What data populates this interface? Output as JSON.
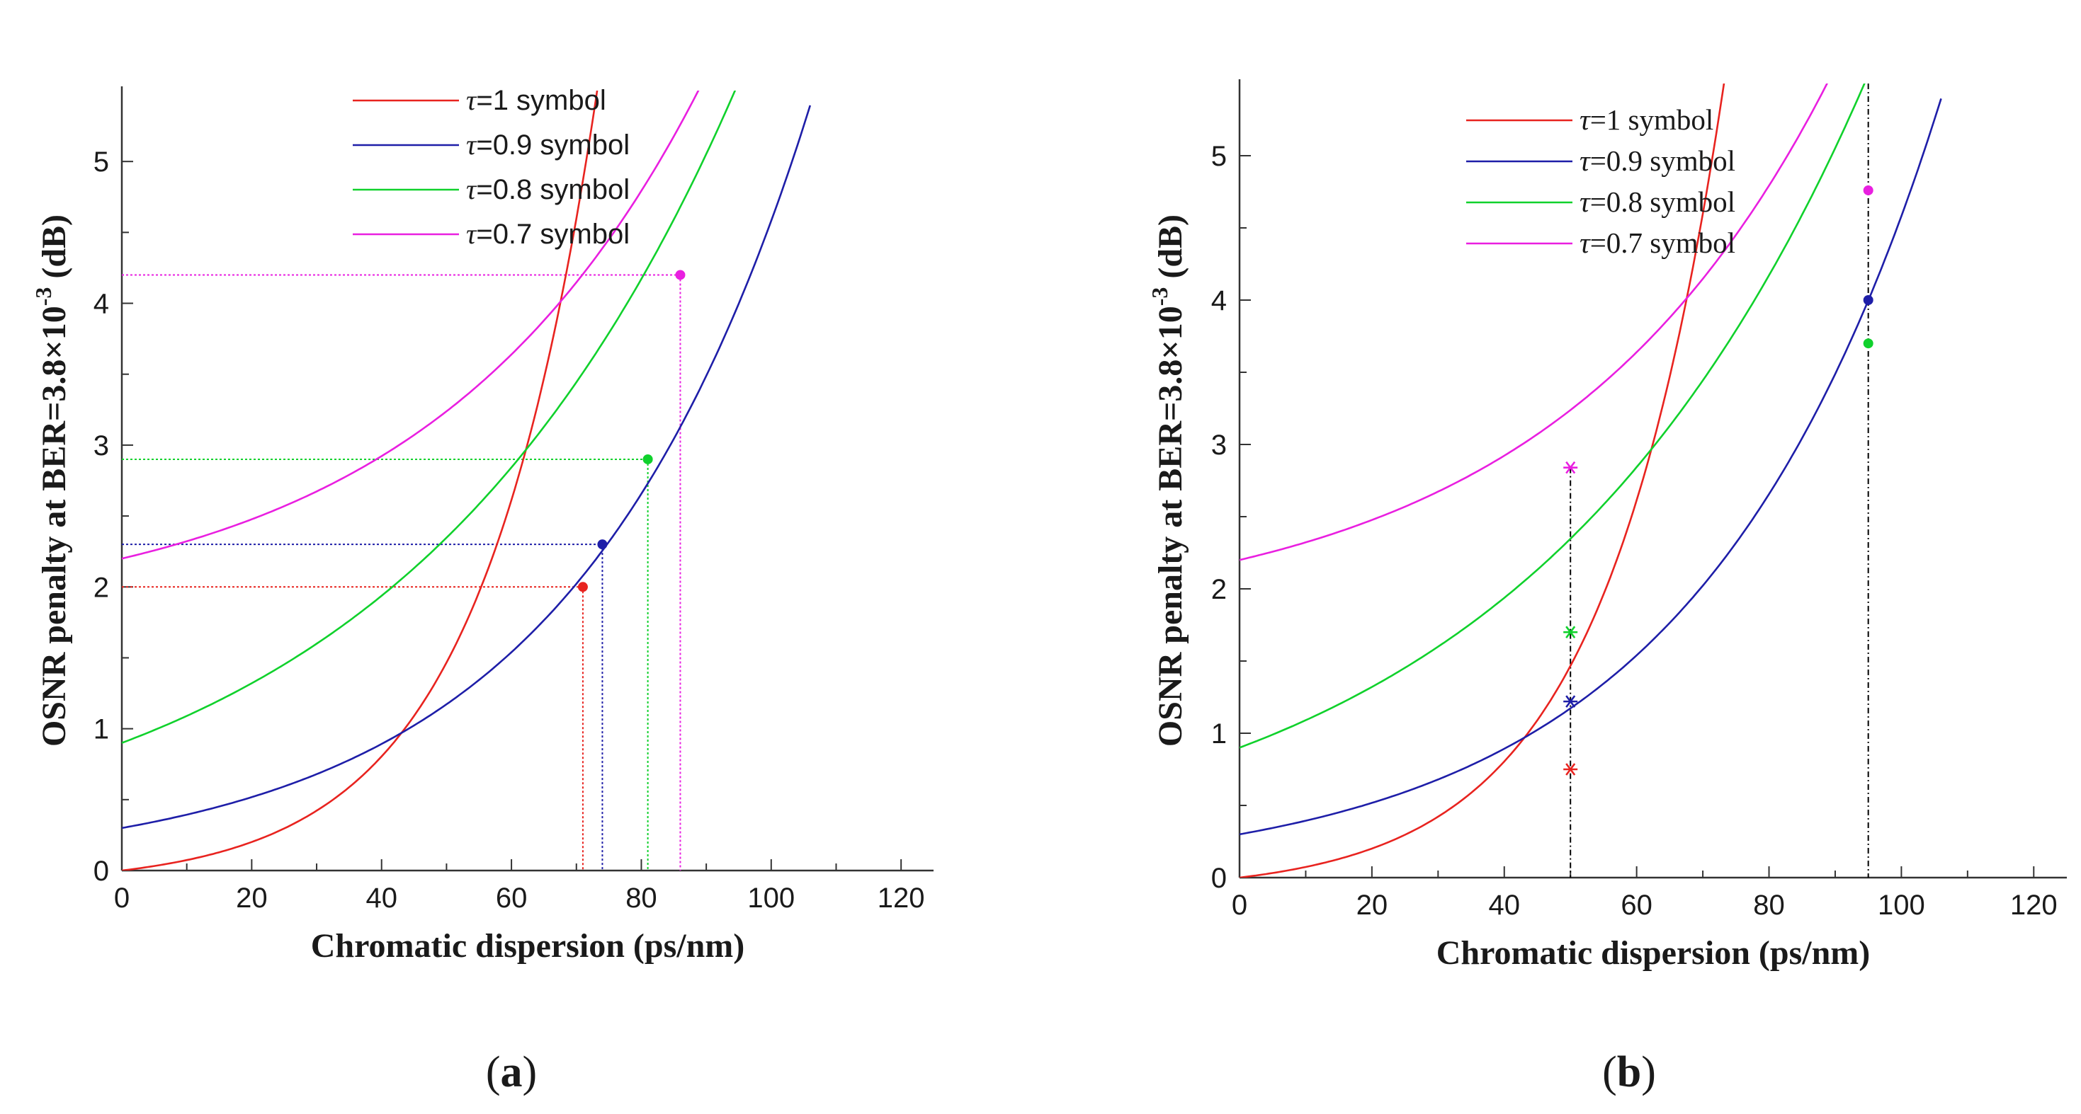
{
  "figure_labels": {
    "a": "a",
    "b": "b"
  },
  "chart_data": [
    {
      "id": "a",
      "type": "line",
      "xlabel": "Chromatic dispersion (ps/nm)",
      "ylabel_main": "OSNR penalty at BER=3.8×10",
      "ylabel_exp": "-3",
      "ylabel_tail": " (dB)",
      "xlim": [
        0,
        125
      ],
      "ylim": [
        0,
        5.5
      ],
      "xticks": [
        "0",
        "20",
        "40",
        "60",
        "80",
        "100",
        "120"
      ],
      "yticks": [
        "0",
        "1",
        "2",
        "3",
        "4",
        "5"
      ],
      "series": [
        {
          "tau": "τ",
          "name": "=1 symbol",
          "color": "#e8231f",
          "y0": 0.0,
          "a": 0.1007,
          "b": 0.0549,
          "x_max": 93
        },
        {
          "tau": "τ",
          "name": "=0.9 symbol",
          "color": "#1e1ea8",
          "y0": 0.3,
          "a": 0.3,
          "b": 0.02726,
          "x_max": 106
        },
        {
          "tau": "τ",
          "name": "=0.8 symbol",
          "color": "#10d12c",
          "y0": 0.9,
          "a": 0.9,
          "b": 0.01917,
          "x_max": 117
        },
        {
          "tau": "τ",
          "name": "=0.7 symbol",
          "color": "#e91fe0",
          "y0": 2.2,
          "a": 0.4547,
          "b": 0.02378,
          "x_max": 104
        }
      ],
      "markers": [
        {
          "series": 0,
          "x": 71,
          "y": 2.0
        },
        {
          "series": 1,
          "x": 74,
          "y": 2.3
        },
        {
          "series": 2,
          "x": 81,
          "y": 2.9
        },
        {
          "series": 3,
          "x": 86,
          "y": 4.2
        }
      ],
      "marker_style": "dot",
      "dotted_guides": true
    },
    {
      "id": "b",
      "type": "line",
      "xlabel": "Chromatic dispersion (ps/nm)",
      "ylabel_main": "OSNR penalty at BER=3.8×10",
      "ylabel_exp": "-3",
      "ylabel_tail": " (dB)",
      "xlim": [
        0,
        125
      ],
      "ylim": [
        0,
        5.5
      ],
      "xticks": [
        "0",
        "20",
        "40",
        "60",
        "80",
        "100",
        "120"
      ],
      "yticks": [
        "0",
        "1",
        "2",
        "3",
        "4",
        "5"
      ],
      "series": [
        {
          "tau": "τ",
          "name": "=1 symbol",
          "color": "#e8231f",
          "y0": 0.0,
          "a": 0.1007,
          "b": 0.0549,
          "x_max": 93
        },
        {
          "tau": "τ",
          "name": "=0.9 symbol",
          "color": "#1e1ea8",
          "y0": 0.3,
          "a": 0.3,
          "b": 0.02726,
          "x_max": 106
        },
        {
          "tau": "τ",
          "name": "=0.8 symbol",
          "color": "#10d12c",
          "y0": 0.9,
          "a": 0.9,
          "b": 0.01917,
          "x_max": 117
        },
        {
          "tau": "τ",
          "name": "=0.7 symbol",
          "color": "#e91fe0",
          "y0": 2.2,
          "a": 0.4547,
          "b": 0.02378,
          "x_max": 104
        }
      ],
      "star_markers": [
        {
          "series": 0,
          "x": 50,
          "y": 0.75
        },
        {
          "series": 1,
          "x": 50,
          "y": 1.22
        },
        {
          "series": 2,
          "x": 50,
          "y": 1.7
        },
        {
          "series": 3,
          "x": 50,
          "y": 2.84
        }
      ],
      "dot_markers": [
        {
          "series": 1,
          "x": 95,
          "y": 4.0
        },
        {
          "series": 2,
          "x": 95,
          "y": 3.7
        },
        {
          "series": 3,
          "x": 95,
          "y": 4.76
        }
      ],
      "vertical_lines": [
        50,
        95
      ]
    }
  ]
}
